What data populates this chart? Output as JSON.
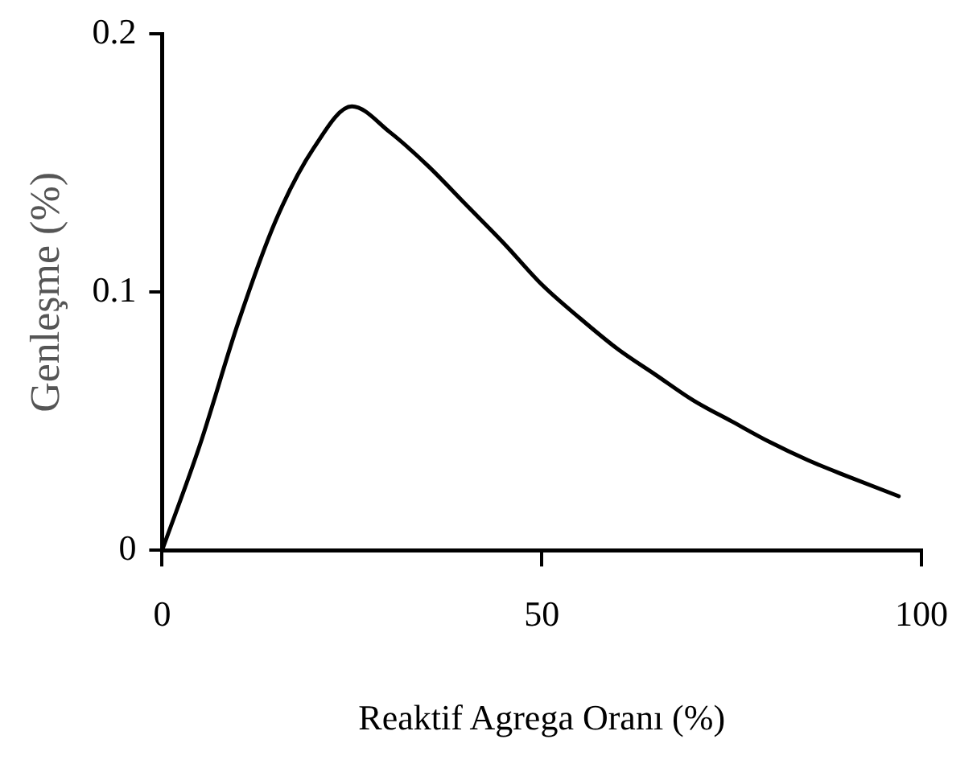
{
  "chart_data": {
    "type": "line",
    "xlabel": "Reaktif Agrega Oranı (%)",
    "ylabel": "Genleşme (%)",
    "x": [
      0,
      5,
      10,
      15,
      20,
      25,
      30,
      35,
      40,
      45,
      50,
      55,
      60,
      65,
      70,
      75,
      80,
      85,
      90,
      97
    ],
    "series": [
      {
        "color": "#000000",
        "values": [
          0,
          0.041,
          0.088,
          0.128,
          0.156,
          0.172,
          0.162,
          0.149,
          0.134,
          0.119,
          0.103,
          0.09,
          0.078,
          0.068,
          0.058,
          0.05,
          0.042,
          0.035,
          0.029,
          0.021
        ]
      }
    ],
    "xlim": [
      0,
      100
    ],
    "xticks": [
      0,
      50,
      100
    ],
    "ylim": [
      0,
      0.2
    ],
    "yticks": [
      0,
      0.1,
      0.2
    ],
    "grid": false,
    "legend": false,
    "marker": "none",
    "line_style": "solid"
  }
}
